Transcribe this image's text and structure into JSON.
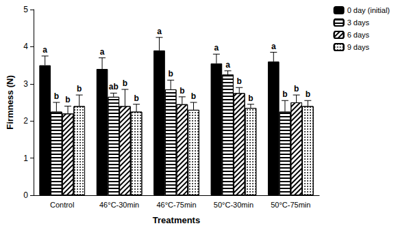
{
  "chart_data": {
    "type": "bar",
    "x_label": "Treatments",
    "y_label": "Firmness (N)",
    "categories": [
      "Control",
      "46°C-30min",
      "46°C-75min",
      "50°C-30min",
      "50°C-75min"
    ],
    "series": [
      {
        "name": "0 day (initial)",
        "color": "#000000",
        "values": [
          3.5,
          3.4,
          3.9,
          3.55,
          3.6
        ],
        "errors": [
          0.25,
          0.3,
          0.35,
          0.25,
          0.25
        ],
        "letters": [
          "a",
          "a",
          "a",
          "a",
          "a"
        ]
      },
      {
        "name": "3 days",
        "color": "#ffffff",
        "values": [
          2.25,
          2.65,
          2.85,
          3.25,
          2.25
        ],
        "errors": [
          0.25,
          0.1,
          0.25,
          0.1,
          0.3
        ],
        "letters": [
          "b",
          "ab",
          "b",
          "a",
          "b"
        ]
      },
      {
        "name": "6 days",
        "color": "#ffffff",
        "values": [
          2.2,
          2.4,
          2.45,
          2.75,
          2.5
        ],
        "errors": [
          0.2,
          0.45,
          0.2,
          0.15,
          0.2
        ],
        "letters": [
          "b",
          "b",
          "b",
          "b",
          "b"
        ]
      },
      {
        "name": "9 days",
        "color": "#ffffff",
        "values": [
          2.4,
          2.25,
          2.3,
          2.35,
          2.4
        ],
        "errors": [
          0.3,
          0.2,
          0.2,
          0.1,
          0.15
        ],
        "letters": [
          "b",
          "b",
          "b",
          "b",
          "b"
        ]
      }
    ],
    "ylim": [
      0,
      5
    ],
    "yticks": [
      0,
      1,
      2,
      3,
      4,
      5
    ],
    "grid": false,
    "legend": "upper right"
  }
}
